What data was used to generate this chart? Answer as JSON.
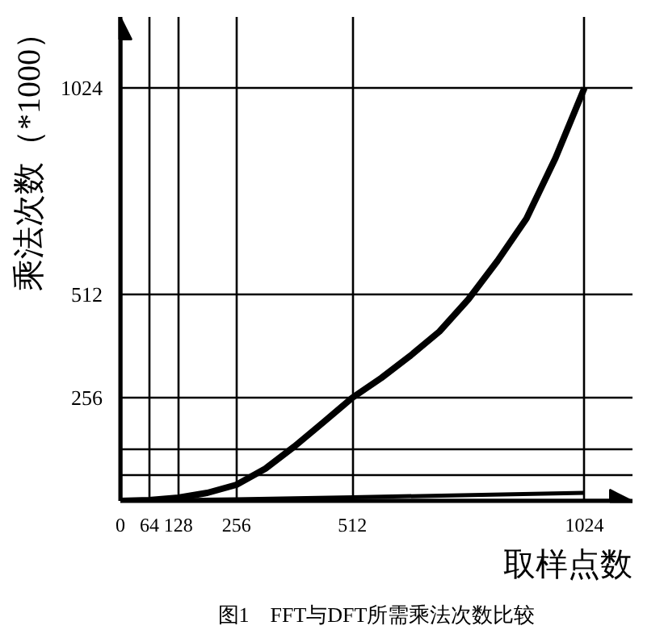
{
  "chart_data": {
    "type": "line",
    "title": "图1　FFT与DFT所需乘法次数比较",
    "xlabel": "取样点数",
    "ylabel": "乘法次数（*1000）",
    "x": [
      0,
      64,
      128,
      192,
      256,
      320,
      384,
      448,
      512,
      576,
      640,
      704,
      768,
      832,
      896,
      960,
      1024
    ],
    "series": [
      {
        "color": "#000000",
        "values": [
          0,
          2,
          8,
          20,
          40,
          80,
          135,
          195,
          256,
          305,
          360,
          420,
          500,
          595,
          700,
          850,
          1024
        ]
      },
      {
        "color": "#000000",
        "x": [
          0,
          64,
          128,
          256,
          512,
          1024
        ],
        "values": [
          0,
          1,
          2,
          4,
          9,
          20
        ]
      }
    ],
    "xlim": [
      0,
      1130
    ],
    "ylim": [
      0,
      1200
    ],
    "xticks": [
      0,
      64,
      128,
      256,
      512,
      1024
    ],
    "yticks": [
      {
        "value": 64,
        "label": null
      },
      {
        "value": 128,
        "label": null
      },
      256,
      512,
      1024
    ],
    "grid": true,
    "marker": "none",
    "line_style": "solid"
  }
}
